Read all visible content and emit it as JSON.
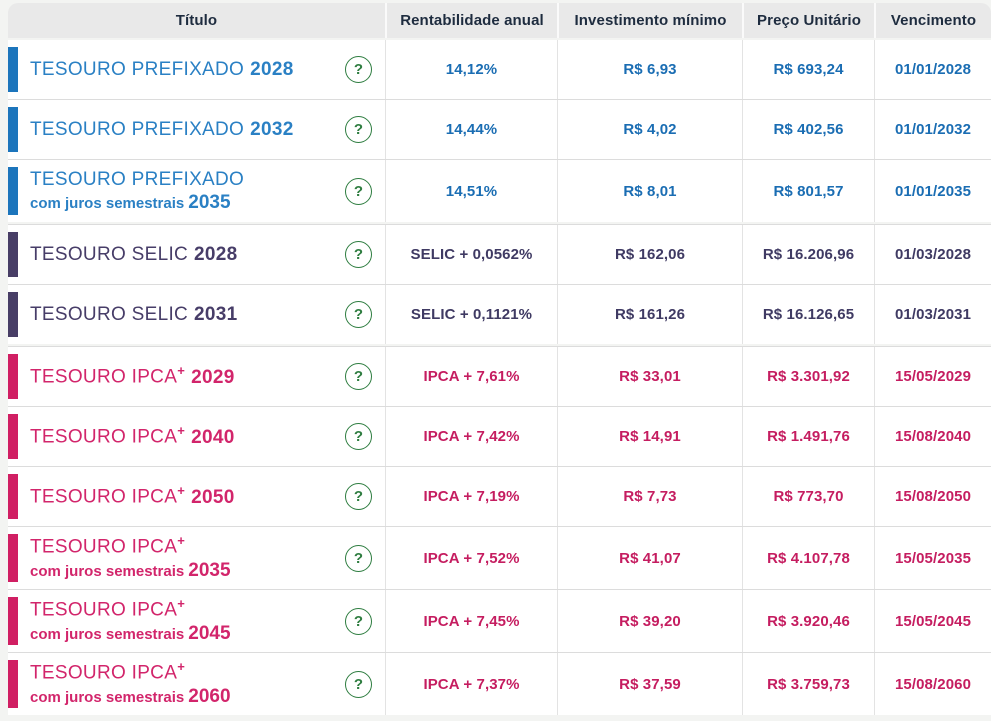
{
  "table": {
    "columns": [
      {
        "id": "titulo",
        "label": "Título"
      },
      {
        "id": "rentabilidade",
        "label": "Rentabilidade anual"
      },
      {
        "id": "investimento",
        "label": "Investimento mínimo"
      },
      {
        "id": "preco",
        "label": "Preço Unitário"
      },
      {
        "id": "vencimento",
        "label": "Vencimento"
      }
    ],
    "help_label": "?",
    "rows": [
      {
        "group": "prefixado",
        "name": "TESOURO PREFIXADO",
        "year": "2028",
        "rate": "14,12%",
        "min": "R$ 6,93",
        "price": "R$ 693,24",
        "due": "01/01/2028"
      },
      {
        "group": "prefixado",
        "name": "TESOURO PREFIXADO",
        "year": "2032",
        "rate": "14,44%",
        "min": "R$ 4,02",
        "price": "R$ 402,56",
        "due": "01/01/2032"
      },
      {
        "group": "prefixado",
        "name": "TESOURO PREFIXADO",
        "line2": "com juros semestrais",
        "year": "2035",
        "rate": "14,51%",
        "min": "R$ 8,01",
        "price": "R$ 801,57",
        "due": "01/01/2035"
      },
      {
        "group": "selic",
        "group_start": true,
        "name": "TESOURO SELIC",
        "year": "2028",
        "rate": "SELIC + 0,0562%",
        "min": "R$ 162,06",
        "price": "R$ 16.206,96",
        "due": "01/03/2028"
      },
      {
        "group": "selic",
        "name": "TESOURO SELIC",
        "year": "2031",
        "rate": "SELIC + 0,1121%",
        "min": "R$ 161,26",
        "price": "R$ 16.126,65",
        "due": "01/03/2031"
      },
      {
        "group": "ipca",
        "group_start": true,
        "name": "TESOURO IPCA",
        "sup": "+",
        "year": "2029",
        "rate": "IPCA + 7,61%",
        "min": "R$ 33,01",
        "price": "R$ 3.301,92",
        "due": "15/05/2029"
      },
      {
        "group": "ipca",
        "name": "TESOURO IPCA",
        "sup": "+",
        "year": "2040",
        "rate": "IPCA + 7,42%",
        "min": "R$ 14,91",
        "price": "R$ 1.491,76",
        "due": "15/08/2040"
      },
      {
        "group": "ipca",
        "name": "TESOURO IPCA",
        "sup": "+",
        "year": "2050",
        "rate": "IPCA + 7,19%",
        "min": "R$ 7,73",
        "price": "R$ 773,70",
        "due": "15/08/2050"
      },
      {
        "group": "ipca",
        "name": "TESOURO IPCA",
        "sup": "+",
        "line2": "com juros semestrais",
        "year": "2035",
        "rate": "IPCA + 7,52%",
        "min": "R$ 41,07",
        "price": "R$ 4.107,78",
        "due": "15/05/2035"
      },
      {
        "group": "ipca",
        "name": "TESOURO IPCA",
        "sup": "+",
        "line2": "com juros semestrais",
        "year": "2045",
        "rate": "IPCA + 7,45%",
        "min": "R$ 39,20",
        "price": "R$ 3.920,46",
        "due": "15/05/2045"
      },
      {
        "group": "ipca",
        "name": "TESOURO IPCA",
        "sup": "+",
        "line2": "com juros semestrais",
        "year": "2060",
        "rate": "IPCA + 7,37%",
        "min": "R$ 37,59",
        "price": "R$ 3.759,73",
        "due": "15/08/2060"
      }
    ]
  },
  "colors": {
    "groups": {
      "prefixado": {
        "bar": "#1c75bc",
        "title": "#2a80c4",
        "value": "#1a6db3"
      },
      "selic": {
        "bar": "#483e66",
        "title": "#473d68",
        "value": "#3f3a63"
      },
      "ipca": {
        "bar": "#d01f63",
        "title": "#d2256b",
        "value": "#c51d60"
      }
    },
    "help_green": "#2e7d40",
    "header_bg": "#e9e9e9",
    "header_text": "#1e2c3f",
    "page_bg": "#f3f4f2",
    "row_border": "#dcdcdc"
  }
}
